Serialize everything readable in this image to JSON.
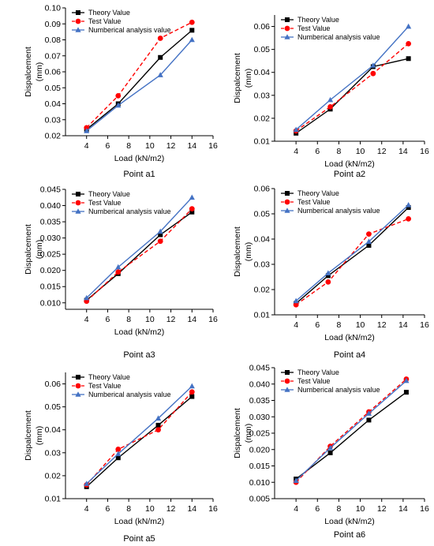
{
  "colors": {
    "theory": "#000000",
    "test": "#ff0000",
    "numerical": "#4472c4"
  },
  "chart_data": [
    {
      "type": "line",
      "caption": "Point a1",
      "xlabel": "Load (kN/m2)",
      "ylabel": [
        "Dispalcement",
        "(mm)"
      ],
      "xlim": [
        2,
        16
      ],
      "xticks": [
        4,
        6,
        8,
        10,
        12,
        14,
        16
      ],
      "ylim": [
        0.02,
        0.1
      ],
      "yticks": [
        "0.02",
        "0.03",
        "0.04",
        "0.05",
        "0.06",
        "0.07",
        "0.08",
        "0.09",
        "0.10"
      ],
      "legend": "top-left",
      "series": [
        {
          "name": "Theory Value",
          "style": "theory",
          "x": [
            4,
            7,
            11,
            14
          ],
          "y": [
            0.024,
            0.04,
            0.069,
            0.086
          ]
        },
        {
          "name": "Test Value",
          "style": "test",
          "x": [
            4,
            7,
            11,
            14
          ],
          "y": [
            0.025,
            0.045,
            0.081,
            0.091
          ]
        },
        {
          "name": "Numberical  analysis value",
          "style": "numerical",
          "x": [
            4,
            7,
            11,
            14
          ],
          "y": [
            0.023,
            0.039,
            0.058,
            0.08
          ]
        }
      ]
    },
    {
      "type": "line",
      "caption": "Point a2",
      "xlabel": "Load (kN/m2)",
      "ylabel": [
        "Dispalcement",
        "(mm)"
      ],
      "xlim": [
        2,
        16
      ],
      "xticks": [
        4,
        6,
        8,
        10,
        12,
        14,
        16
      ],
      "ylim": [
        0.01,
        0.065
      ],
      "yticks": [
        "0.01",
        "0.02",
        "0.03",
        "0.04",
        "0.05",
        "0.06"
      ],
      "legend": "top-left",
      "series": [
        {
          "name": "Theory Value",
          "style": "theory",
          "x": [
            4,
            7.2,
            11.2,
            14.5
          ],
          "y": [
            0.0135,
            0.024,
            0.0425,
            0.046
          ]
        },
        {
          "name": "Test Value",
          "style": "test",
          "x": [
            4,
            7.2,
            11.2,
            14.5
          ],
          "y": [
            0.0145,
            0.025,
            0.0395,
            0.0525
          ]
        },
        {
          "name": "Numberical  analysis value",
          "style": "numerical",
          "x": [
            4,
            7.2,
            11.2,
            14.5
          ],
          "y": [
            0.015,
            0.028,
            0.043,
            0.06
          ]
        }
      ]
    },
    {
      "type": "line",
      "caption": "Point a3",
      "xlabel": "Load (kN/m2)",
      "ylabel": [
        "Dispalcement",
        "(mm)"
      ],
      "xlim": [
        2,
        16
      ],
      "xticks": [
        4,
        6,
        8,
        10,
        12,
        14,
        16
      ],
      "ylim": [
        0.008,
        0.045
      ],
      "yticks": [
        "0.010",
        "0.015",
        "0.020",
        "0.025",
        "0.030",
        "0.035",
        "0.040",
        "0.045"
      ],
      "legend": "top-left",
      "series": [
        {
          "name": "Theory Value",
          "style": "theory",
          "x": [
            4,
            7,
            11,
            14
          ],
          "y": [
            0.0108,
            0.019,
            0.031,
            0.038
          ]
        },
        {
          "name": "Test Value",
          "style": "test",
          "x": [
            4,
            7,
            11,
            14
          ],
          "y": [
            0.0105,
            0.0195,
            0.029,
            0.039
          ]
        },
        {
          "name": "Numberical  analysis value",
          "style": "numerical",
          "x": [
            4,
            7,
            11,
            14
          ],
          "y": [
            0.0115,
            0.021,
            0.032,
            0.0425
          ]
        }
      ]
    },
    {
      "type": "line",
      "caption": "Point a4",
      "xlabel": "Load (kN/m2)",
      "ylabel": [
        "Dispalcement",
        "(mm)"
      ],
      "xlim": [
        2,
        16
      ],
      "xticks": [
        4,
        6,
        8,
        10,
        12,
        14,
        16
      ],
      "ylim": [
        0.01,
        0.06
      ],
      "yticks": [
        "0.01",
        "0.02",
        "0.03",
        "0.04",
        "0.05",
        "0.06"
      ],
      "legend": "top-left",
      "series": [
        {
          "name": "Theory Value",
          "style": "theory",
          "x": [
            4,
            7,
            10.8,
            14.5
          ],
          "y": [
            0.0145,
            0.0255,
            0.0375,
            0.0525
          ]
        },
        {
          "name": "Test Value",
          "style": "test",
          "x": [
            4,
            7,
            10.8,
            14.5
          ],
          "y": [
            0.014,
            0.023,
            0.042,
            0.048
          ]
        },
        {
          "name": "Numberical  analysis value",
          "style": "numerical",
          "x": [
            4,
            7,
            10.8,
            14.5
          ],
          "y": [
            0.0155,
            0.0265,
            0.039,
            0.0535
          ]
        }
      ]
    },
    {
      "type": "line",
      "caption": "Point a5",
      "xlabel": "Load (kN/m2)",
      "ylabel": [
        "Dispalcement",
        "(mm)"
      ],
      "xlim": [
        2,
        16
      ],
      "xticks": [
        4,
        6,
        8,
        10,
        12,
        14,
        16
      ],
      "ylim": [
        0.01,
        0.065
      ],
      "yticks": [
        "0.01",
        "0.02",
        "0.03",
        "0.04",
        "0.05",
        "0.06"
      ],
      "legend": "top-left",
      "series": [
        {
          "name": "Theory Value",
          "style": "theory",
          "x": [
            4,
            7,
            10.8,
            14
          ],
          "y": [
            0.0152,
            0.0278,
            0.042,
            0.0545
          ]
        },
        {
          "name": "Test Value",
          "style": "test",
          "x": [
            4,
            7,
            10.8,
            14
          ],
          "y": [
            0.016,
            0.0315,
            0.04,
            0.0565
          ]
        },
        {
          "name": "Numberical  analysis value",
          "style": "numerical",
          "x": [
            4,
            7,
            10.8,
            14
          ],
          "y": [
            0.0165,
            0.0295,
            0.045,
            0.059
          ]
        }
      ]
    },
    {
      "type": "line",
      "caption": "Point a6",
      "xlabel": "Load (kN/m2)",
      "ylabel": [
        "Dispalcement",
        "(mm)"
      ],
      "xlim": [
        2,
        16
      ],
      "xticks": [
        4,
        6,
        8,
        10,
        12,
        14,
        16
      ],
      "ylim": [
        0.005,
        0.045
      ],
      "yticks": [
        "0.005",
        "0.010",
        "0.015",
        "0.020",
        "0.025",
        "0.030",
        "0.035",
        "0.040",
        "0.045"
      ],
      "legend": "top-left",
      "series": [
        {
          "name": "Theory Value",
          "style": "theory",
          "x": [
            4,
            7.2,
            10.8,
            14.3
          ],
          "y": [
            0.011,
            0.019,
            0.029,
            0.0375
          ]
        },
        {
          "name": "Test Value",
          "style": "test",
          "x": [
            4,
            7.2,
            10.8,
            14.3
          ],
          "y": [
            0.01,
            0.021,
            0.0315,
            0.0415
          ]
        },
        {
          "name": "Numberical  analysis value",
          "style": "numerical",
          "x": [
            4,
            7.2,
            10.8,
            14.3
          ],
          "y": [
            0.0105,
            0.0205,
            0.031,
            0.041
          ]
        }
      ]
    }
  ]
}
